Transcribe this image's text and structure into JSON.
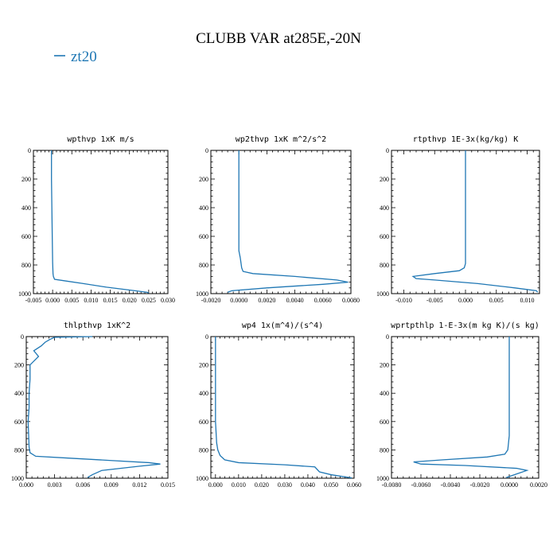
{
  "figure": {
    "title": "CLUBB VAR at285E,-20N",
    "legend": {
      "label": "zt20",
      "color": "#1f77b4"
    }
  },
  "chart_data": [
    {
      "type": "line",
      "title": "wpthvp  1xK m/s",
      "xlim": [
        -0.005,
        0.03
      ],
      "ylim": [
        1000,
        0
      ],
      "xticks": [
        -0.005,
        0.0,
        0.005,
        0.01,
        0.015,
        0.02,
        0.025,
        0.03
      ],
      "xtick_labels": [
        "-0.005",
        "0.000",
        "0.005",
        "0.010",
        "0.015",
        "0.020",
        "0.025",
        "0.030"
      ],
      "yticks": [
        0,
        200,
        400,
        600,
        800,
        1000
      ],
      "ytick_labels": [
        "0",
        "200",
        "400",
        "600",
        "800",
        "1000"
      ],
      "series": [
        {
          "name": "zt20",
          "color": "#1f77b4",
          "x": [
            -0.0003,
            -0.0003,
            -0.0002,
            -0.0001,
            0.0,
            0.0001,
            0.0002,
            0.0005,
            0.003,
            0.008,
            0.014,
            0.02,
            0.0245,
            0.025
          ],
          "y": [
            0,
            200,
            400,
            600,
            780,
            860,
            880,
            900,
            910,
            930,
            955,
            975,
            990,
            995
          ]
        }
      ]
    },
    {
      "type": "line",
      "title": "wp2thvp  1xK m^2/s^2",
      "xlim": [
        -0.002,
        0.008
      ],
      "ylim": [
        1000,
        0
      ],
      "xticks": [
        -0.002,
        0.0,
        0.002,
        0.004,
        0.006,
        0.008
      ],
      "xtick_labels": [
        "-0.0020",
        "0.0000",
        "0.0020",
        "0.0040",
        "0.0060",
        "0.0080"
      ],
      "yticks": [
        0,
        200,
        400,
        600,
        800,
        1000
      ],
      "ytick_labels": [
        "0",
        "200",
        "400",
        "600",
        "800",
        "1000"
      ],
      "series": [
        {
          "name": "zt20",
          "color": "#1f77b4",
          "x": [
            0.0,
            0.0,
            0.0,
            0.0001,
            0.0002,
            0.0003,
            0.001,
            0.004,
            0.007,
            0.0078,
            0.006,
            0.002,
            -0.0005,
            -0.0008
          ],
          "y": [
            0,
            400,
            700,
            750,
            820,
            845,
            860,
            880,
            905,
            920,
            935,
            960,
            980,
            990
          ]
        }
      ]
    },
    {
      "type": "line",
      "title": "rtpthvp  1E-3x(kg/kg) K",
      "xlim": [
        -0.012,
        0.012
      ],
      "ylim": [
        1000,
        0
      ],
      "xticks": [
        -0.01,
        -0.005,
        0.0,
        0.005,
        0.01
      ],
      "xtick_labels": [
        "-0.010",
        "-0.005",
        "0.000",
        "0.005",
        "0.010"
      ],
      "yticks": [
        0,
        200,
        400,
        600,
        800,
        1000
      ],
      "ytick_labels": [
        "0",
        "200",
        "400",
        "600",
        "800",
        "1000"
      ],
      "series": [
        {
          "name": "zt20",
          "color": "#1f77b4",
          "x": [
            0.0,
            0.0,
            0.0,
            -0.0002,
            -0.001,
            -0.005,
            -0.0085,
            -0.008,
            -0.005,
            0.002,
            0.008,
            0.0115,
            0.0117
          ],
          "y": [
            0,
            400,
            790,
            820,
            840,
            860,
            880,
            895,
            905,
            930,
            960,
            980,
            990
          ]
        }
      ]
    },
    {
      "type": "line",
      "title": "thlpthvp   1xK^2",
      "xlim": [
        0.0,
        0.015
      ],
      "ylim": [
        1000,
        0
      ],
      "xticks": [
        0.0,
        0.003,
        0.006,
        0.009,
        0.012,
        0.015
      ],
      "xtick_labels": [
        "0.000",
        "0.003",
        "0.006",
        "0.009",
        "0.012",
        "0.015"
      ],
      "yticks": [
        0,
        200,
        400,
        600,
        800,
        1000
      ],
      "ytick_labels": [
        "0",
        "200",
        "400",
        "600",
        "800",
        "1000"
      ],
      "series": [
        {
          "name": "zt20",
          "color": "#1f77b4",
          "x": [
            0.007,
            0.003,
            0.0025,
            0.002,
            0.0016,
            0.0008,
            0.0013,
            0.0004,
            0.0004,
            0.0003,
            0.0003,
            0.0002,
            0.0003,
            0.0004,
            0.001,
            0.005,
            0.009,
            0.013,
            0.0142,
            0.012,
            0.008,
            0.007,
            0.0065
          ],
          "y": [
            0,
            5,
            20,
            40,
            65,
            100,
            140,
            200,
            300,
            400,
            500,
            600,
            780,
            820,
            845,
            860,
            875,
            890,
            900,
            915,
            945,
            975,
            995
          ]
        }
      ]
    },
    {
      "type": "line",
      "title": "wp4  1x(m^4)/(s^4)",
      "xlim": [
        -0.002,
        0.06
      ],
      "ylim": [
        1000,
        0
      ],
      "xticks": [
        0.0,
        0.01,
        0.02,
        0.03,
        0.04,
        0.05,
        0.06
      ],
      "xtick_labels": [
        "0.000",
        "0.010",
        "0.020",
        "0.030",
        "0.040",
        "0.050",
        "0.060"
      ],
      "yticks": [
        0,
        200,
        400,
        600,
        800,
        1000
      ],
      "ytick_labels": [
        "0",
        "200",
        "400",
        "600",
        "800",
        "1000"
      ],
      "series": [
        {
          "name": "zt20",
          "color": "#1f77b4",
          "x": [
            0.0,
            0.0,
            0.0005,
            0.001,
            0.002,
            0.004,
            0.01,
            0.03,
            0.043,
            0.045,
            0.05,
            0.056,
            0.059
          ],
          "y": [
            0,
            600,
            750,
            800,
            840,
            870,
            890,
            905,
            920,
            955,
            975,
            990,
            998
          ]
        }
      ]
    },
    {
      "type": "line",
      "title": "wprtpthlp  1-E-3x(m kg K)/(s kg)",
      "xlim": [
        -0.008,
        0.002
      ],
      "ylim": [
        1000,
        0
      ],
      "xticks": [
        -0.008,
        -0.006,
        -0.004,
        -0.002,
        0.0,
        0.002
      ],
      "xtick_labels": [
        "-0.0080",
        "-0.0060",
        "-0.0040",
        "-0.0020",
        "0.0000",
        "0.0020"
      ],
      "yticks": [
        0,
        200,
        400,
        600,
        800,
        1000
      ],
      "ytick_labels": [
        "0",
        "200",
        "400",
        "600",
        "800",
        "1000"
      ],
      "series": [
        {
          "name": "zt20",
          "color": "#1f77b4",
          "x": [
            0.0,
            0.0,
            -0.0001,
            -0.0003,
            -0.0015,
            -0.0045,
            -0.0065,
            -0.006,
            -0.003,
            0.0005,
            0.0012,
            0.0005,
            -0.0002
          ],
          "y": [
            0,
            700,
            800,
            830,
            850,
            870,
            885,
            900,
            910,
            930,
            945,
            970,
            995
          ]
        }
      ]
    }
  ]
}
